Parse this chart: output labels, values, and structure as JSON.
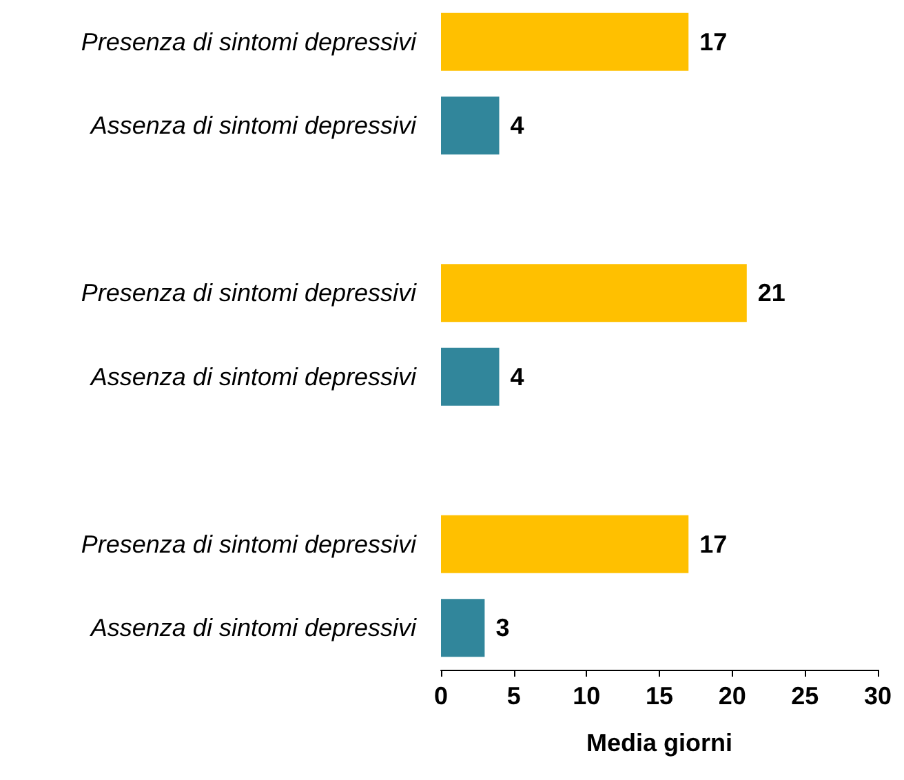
{
  "chart_data": {
    "type": "bar",
    "orientation": "horizontal",
    "xlabel": "Media giorni",
    "categories": [
      "Presenza di sintomi depressivi",
      "Assenza di sintomi depressivi",
      null,
      "Presenza di sintomi depressivi",
      "Assenza di sintomi depressivi",
      null,
      "Presenza di sintomi depressivi",
      "Assenza di sintomi depressivi"
    ],
    "values": [
      17,
      4,
      null,
      21,
      4,
      null,
      17,
      3
    ],
    "colors": [
      "#ffc000",
      "#31869b",
      null,
      "#ffc000",
      "#31869b",
      null,
      "#ffc000",
      "#31869b"
    ],
    "xlim": [
      0,
      30
    ],
    "xticks": [
      0,
      5,
      10,
      15,
      20,
      25,
      30
    ],
    "data_labels": true
  }
}
